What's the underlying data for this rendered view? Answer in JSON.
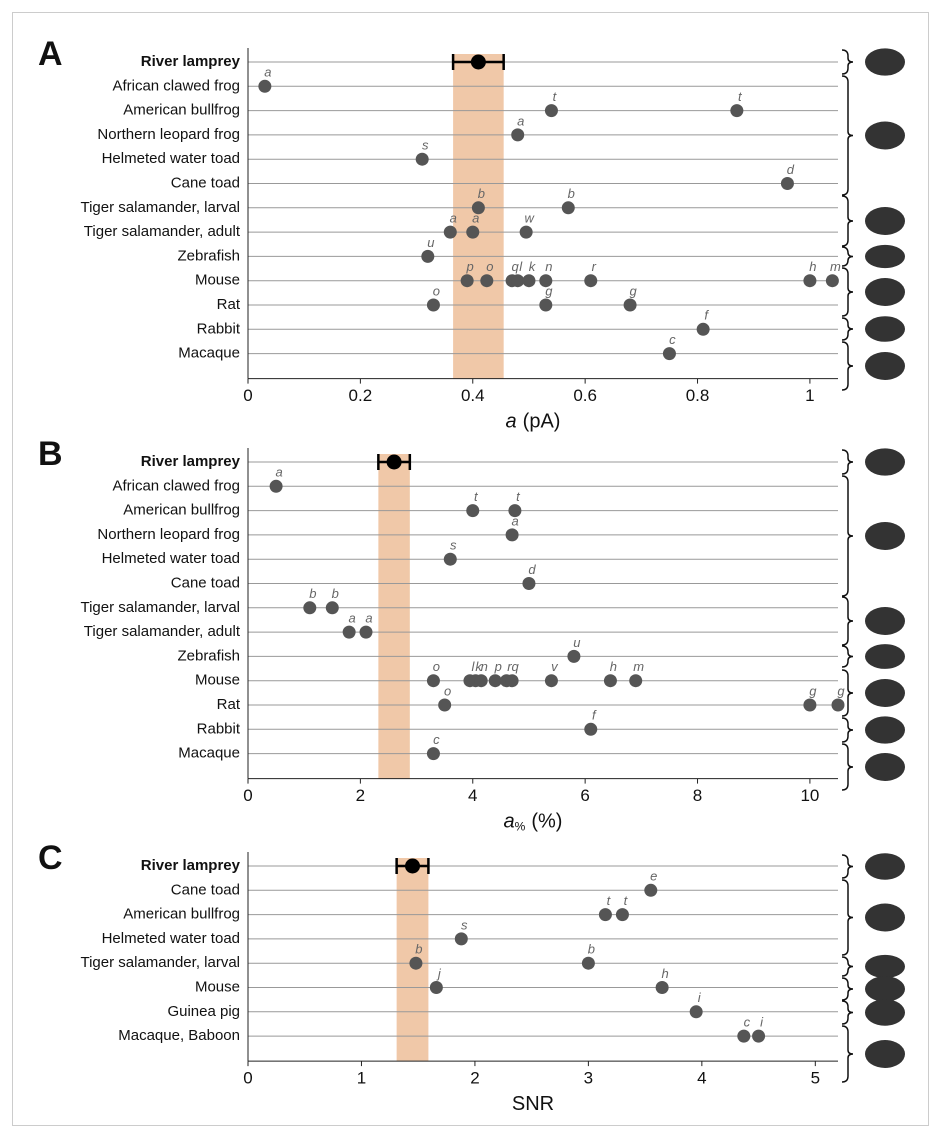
{
  "chart_data": [
    {
      "type": "dot",
      "panel": "A",
      "xlabel": {
        "symbol": "a",
        "unit": "(pA)"
      },
      "xlim": [
        0,
        1.05
      ],
      "xticks": [
        0,
        0.2,
        0.4,
        0.6,
        0.8,
        1
      ],
      "band_color": "#f0c8a8",
      "point_color": "#555555",
      "rows": [
        {
          "name": "River lamprey",
          "points": [
            {
              "x": 0.41,
              "error": 0.045
            }
          ]
        },
        {
          "name": "African clawed frog",
          "points": [
            {
              "x": 0.03,
              "label": "a"
            }
          ]
        },
        {
          "name": "American bullfrog",
          "points": [
            {
              "x": 0.54,
              "label": "t"
            },
            {
              "x": 0.87,
              "label": "t"
            }
          ]
        },
        {
          "name": "Northern leopard frog",
          "points": [
            {
              "x": 0.48,
              "label": "a"
            }
          ]
        },
        {
          "name": "Helmeted water toad",
          "points": [
            {
              "x": 0.31,
              "label": "s"
            }
          ]
        },
        {
          "name": "Cane toad",
          "points": [
            {
              "x": 0.96,
              "label": "d"
            }
          ]
        },
        {
          "name": "Tiger salamander, larval",
          "points": [
            {
              "x": 0.41,
              "label": "b"
            },
            {
              "x": 0.57,
              "label": "b"
            }
          ]
        },
        {
          "name": "Tiger salamander, adult",
          "points": [
            {
              "x": 0.36,
              "label": "a"
            },
            {
              "x": 0.4,
              "label": "a"
            },
            {
              "x": 0.495,
              "label": "w"
            }
          ]
        },
        {
          "name": "Zebrafish",
          "points": [
            {
              "x": 0.32,
              "label": "u"
            }
          ]
        },
        {
          "name": "Mouse",
          "points": [
            {
              "x": 0.39,
              "label": "p"
            },
            {
              "x": 0.425,
              "label": "o"
            },
            {
              "x": 0.47,
              "label": "q"
            },
            {
              "x": 0.48,
              "label": "l"
            },
            {
              "x": 0.5,
              "label": "k"
            },
            {
              "x": 0.53,
              "label": "n"
            },
            {
              "x": 0.61,
              "label": "r"
            },
            {
              "x": 1.0,
              "label": "h"
            },
            {
              "x": 1.04,
              "label": "m"
            }
          ]
        },
        {
          "name": "Rat",
          "points": [
            {
              "x": 0.33,
              "label": "o"
            },
            {
              "x": 0.53,
              "label": "g"
            },
            {
              "x": 0.68,
              "label": "g"
            }
          ]
        },
        {
          "name": "Rabbit",
          "points": [
            {
              "x": 0.81,
              "label": "f"
            }
          ]
        },
        {
          "name": "Macaque",
          "points": [
            {
              "x": 0.75,
              "label": "c"
            }
          ]
        }
      ]
    },
    {
      "type": "dot",
      "panel": "B",
      "xlabel": {
        "symbol": "a",
        "subscript": "%",
        "unit": "(%)"
      },
      "xlim": [
        0,
        10.5
      ],
      "xticks": [
        0,
        2,
        4,
        6,
        8,
        10
      ],
      "band_color": "#f0c8a8",
      "point_color": "#555555",
      "rows": [
        {
          "name": "River lamprey",
          "points": [
            {
              "x": 2.6,
              "error": 0.28
            }
          ]
        },
        {
          "name": "African clawed frog",
          "points": [
            {
              "x": 0.5,
              "label": "a"
            }
          ]
        },
        {
          "name": "American bullfrog",
          "points": [
            {
              "x": 4.0,
              "label": "t"
            },
            {
              "x": 4.75,
              "label": "t"
            }
          ]
        },
        {
          "name": "Northern leopard frog",
          "points": [
            {
              "x": 4.7,
              "label": "a"
            }
          ]
        },
        {
          "name": "Helmeted water toad",
          "points": [
            {
              "x": 3.6,
              "label": "s"
            }
          ]
        },
        {
          "name": "Cane toad",
          "points": [
            {
              "x": 5.0,
              "label": "d"
            }
          ]
        },
        {
          "name": "Tiger salamander, larval",
          "points": [
            {
              "x": 1.1,
              "label": "b"
            },
            {
              "x": 1.5,
              "label": "b"
            }
          ]
        },
        {
          "name": "Tiger salamander, adult",
          "points": [
            {
              "x": 1.8,
              "label": "a"
            },
            {
              "x": 2.1,
              "label": "a"
            }
          ]
        },
        {
          "name": "Zebrafish",
          "points": [
            {
              "x": 5.8,
              "label": "u"
            }
          ]
        },
        {
          "name": "Mouse",
          "points": [
            {
              "x": 3.3,
              "label": "o"
            },
            {
              "x": 3.95,
              "label": "l"
            },
            {
              "x": 4.05,
              "label": "k"
            },
            {
              "x": 4.15,
              "label": "n"
            },
            {
              "x": 4.4,
              "label": "p"
            },
            {
              "x": 4.6,
              "label": "r"
            },
            {
              "x": 4.7,
              "label": "q"
            },
            {
              "x": 5.4,
              "label": "v"
            },
            {
              "x": 6.45,
              "label": "h"
            },
            {
              "x": 6.9,
              "label": "m"
            }
          ]
        },
        {
          "name": "Rat",
          "points": [
            {
              "x": 3.5,
              "label": "o"
            },
            {
              "x": 10.0,
              "label": "g"
            },
            {
              "x": 10.5,
              "label": "g"
            }
          ]
        },
        {
          "name": "Rabbit",
          "points": [
            {
              "x": 6.1,
              "label": "f"
            }
          ]
        },
        {
          "name": "Macaque",
          "points": [
            {
              "x": 3.3,
              "label": "c"
            }
          ]
        }
      ]
    },
    {
      "type": "dot",
      "panel": "C",
      "xlabel": {
        "text": "SNR"
      },
      "xlim": [
        0,
        5.2
      ],
      "xticks": [
        0,
        1,
        2,
        3,
        4,
        5
      ],
      "band_color": "#f0c8a8",
      "point_color": "#555555",
      "rows": [
        {
          "name": "River lamprey",
          "points": [
            {
              "x": 1.45,
              "error": 0.14
            }
          ]
        },
        {
          "name": "Cane toad",
          "points": [
            {
              "x": 3.55,
              "label": "e"
            }
          ]
        },
        {
          "name": "American bullfrog",
          "points": [
            {
              "x": 3.15,
              "label": "t"
            },
            {
              "x": 3.3,
              "label": "t"
            }
          ]
        },
        {
          "name": "Helmeted water toad",
          "points": [
            {
              "x": 1.88,
              "label": "s"
            }
          ]
        },
        {
          "name": "Tiger salamander, larval",
          "points": [
            {
              "x": 1.48,
              "label": "b"
            },
            {
              "x": 3.0,
              "label": "b"
            }
          ]
        },
        {
          "name": "Mouse",
          "points": [
            {
              "x": 1.66,
              "label": "j"
            },
            {
              "x": 3.65,
              "label": "h"
            }
          ]
        },
        {
          "name": "Guinea pig",
          "points": [
            {
              "x": 3.95,
              "label": "i"
            }
          ]
        },
        {
          "name": "Macaque, Baboon",
          "points": [
            {
              "x": 4.37,
              "label": "c"
            },
            {
              "x": 4.5,
              "label": "i"
            }
          ]
        }
      ]
    }
  ]
}
